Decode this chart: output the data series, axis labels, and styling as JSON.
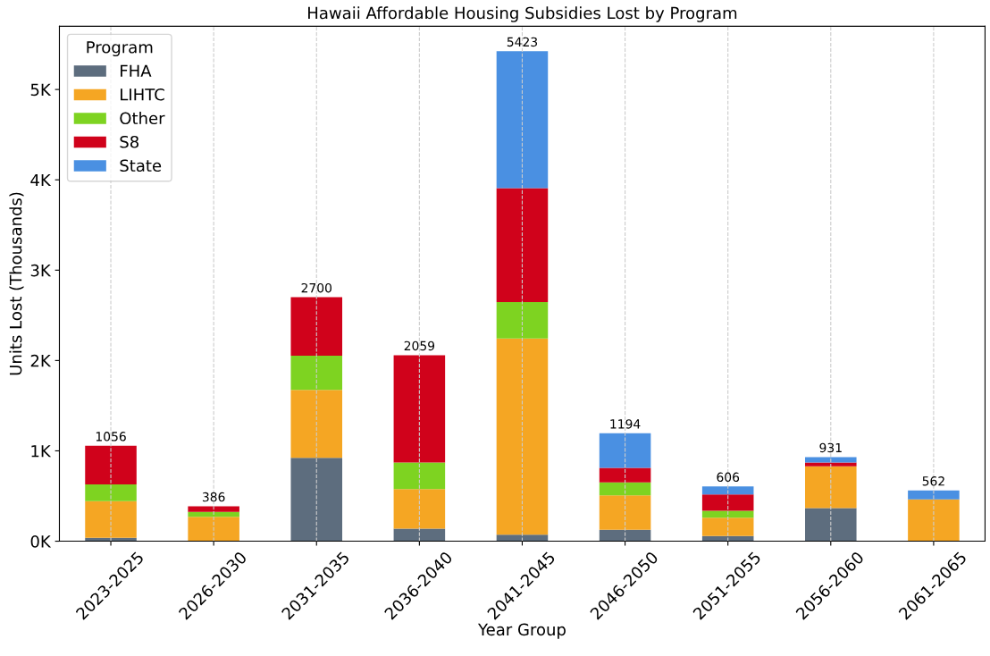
{
  "chart_data": {
    "type": "bar",
    "stacked": true,
    "title": "Hawaii Affordable Housing Subsidies Lost by Program",
    "xlabel": "Year Group",
    "ylabel": "Units Lost (Thousands)",
    "legend_title": "Program",
    "legend": "top left",
    "grid": "x",
    "categories": [
      "2023-2025",
      "2026-2030",
      "2031-2035",
      "2036-2040",
      "2041-2045",
      "2046-2050",
      "2051-2055",
      "2056-2060",
      "2061-2065"
    ],
    "series": [
      {
        "name": "FHA",
        "color": "#5d6d7e",
        "values": [
          38,
          0,
          923,
          138,
          72,
          127,
          58,
          366,
          0
        ]
      },
      {
        "name": "LIHTC",
        "color": "#f5a623",
        "values": [
          404,
          269,
          753,
          439,
          2172,
          380,
          203,
          463,
          463
        ]
      },
      {
        "name": "Other",
        "color": "#7ed321",
        "values": [
          186,
          55,
          378,
          295,
          402,
          144,
          76,
          0,
          0
        ]
      },
      {
        "name": "S8",
        "color": "#d0021b",
        "values": [
          428,
          62,
          646,
          1187,
          1263,
          160,
          181,
          43,
          0
        ]
      },
      {
        "name": "State",
        "color": "#4a90e2",
        "values": [
          0,
          0,
          0,
          0,
          1514,
          383,
          88,
          59,
          99
        ]
      }
    ],
    "totals": [
      "1056",
      "386",
      "2700",
      "2059",
      "5423",
      "1194",
      "606",
      "931",
      "562"
    ],
    "ylim": [
      0,
      5700
    ],
    "yticks": [
      {
        "value": 0,
        "label": "0K"
      },
      {
        "value": 1000,
        "label": "1K"
      },
      {
        "value": 2000,
        "label": "2K"
      },
      {
        "value": 3000,
        "label": "3K"
      },
      {
        "value": 4000,
        "label": "4K"
      },
      {
        "value": 5000,
        "label": "5K"
      }
    ]
  }
}
